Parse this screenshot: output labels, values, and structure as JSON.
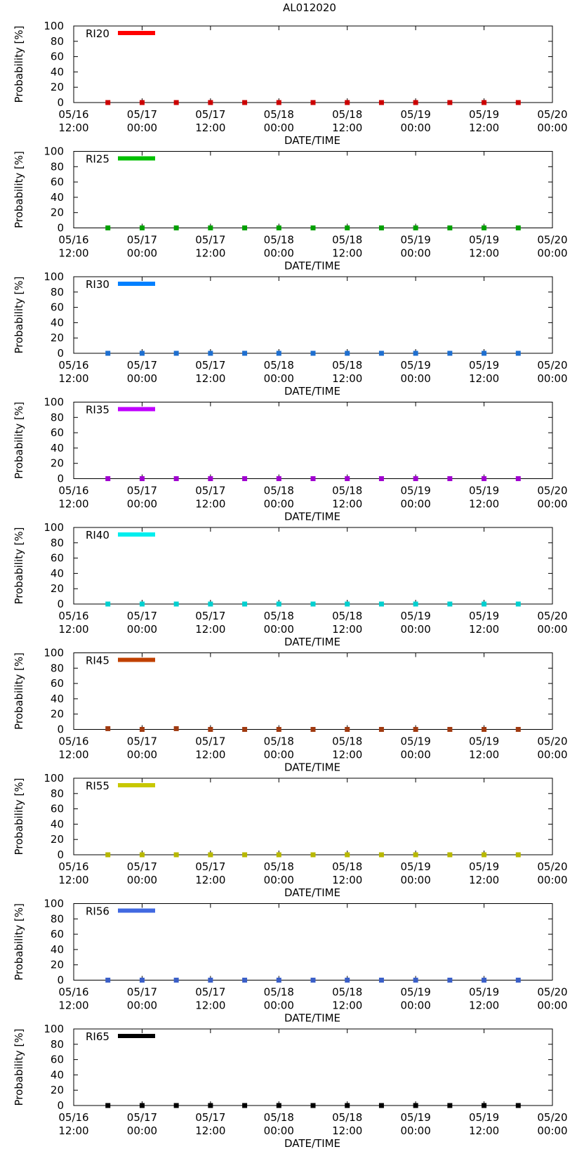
{
  "chart_data": {
    "type": "scatter",
    "title": "AL012020",
    "xlabel": "DATE/TIME",
    "ylabel": "Probability [%]",
    "xlim_hours": [
      0,
      84
    ],
    "ylim": [
      0,
      100
    ],
    "yticks": [
      0,
      20,
      40,
      60,
      80,
      100
    ],
    "xticks": [
      {
        "hour": 0,
        "date": "05/16",
        "time": "12:00"
      },
      {
        "hour": 12,
        "date": "05/17",
        "time": "00:00"
      },
      {
        "hour": 24,
        "date": "05/17",
        "time": "12:00"
      },
      {
        "hour": 36,
        "date": "05/18",
        "time": "00:00"
      },
      {
        "hour": 48,
        "date": "05/18",
        "time": "12:00"
      },
      {
        "hour": 60,
        "date": "05/19",
        "time": "00:00"
      },
      {
        "hour": 72,
        "date": "05/19",
        "time": "12:00"
      },
      {
        "hour": 84,
        "date": "05/20",
        "time": "00:00"
      }
    ],
    "x_hours": [
      6,
      12,
      18,
      24,
      30,
      36,
      42,
      48,
      54,
      60,
      66,
      72,
      78
    ],
    "series": [
      {
        "name": "RI20",
        "color": "#ff0000",
        "marker_color": "#cc0000",
        "values": [
          0,
          0,
          0,
          0,
          0,
          0,
          0,
          0,
          0,
          0,
          0,
          0,
          0
        ]
      },
      {
        "name": "RI25",
        "color": "#00c000",
        "marker_color": "#00a000",
        "values": [
          0,
          0,
          0,
          0,
          0,
          0,
          0,
          0,
          0,
          0,
          0,
          0,
          0
        ]
      },
      {
        "name": "RI30",
        "color": "#0080ff",
        "marker_color": "#1e6fd0",
        "values": [
          0,
          0,
          0,
          0,
          0,
          0,
          0,
          0,
          0,
          0,
          0,
          0,
          0
        ]
      },
      {
        "name": "RI35",
        "color": "#c000ff",
        "marker_color": "#a000d0",
        "values": [
          0,
          0,
          0,
          0,
          0,
          0,
          0,
          0,
          0,
          0,
          0,
          0,
          0
        ]
      },
      {
        "name": "RI40",
        "color": "#00eeee",
        "marker_color": "#00d0d0",
        "values": [
          0,
          0,
          0,
          0,
          0,
          0,
          0,
          0,
          0,
          0,
          0,
          0,
          0
        ]
      },
      {
        "name": "RI45",
        "color": "#c04000",
        "marker_color": "#a03a10",
        "values": [
          1,
          0,
          1,
          0,
          0,
          0,
          0,
          0,
          0,
          0,
          0,
          0,
          0
        ]
      },
      {
        "name": "RI55",
        "color": "#c8c800",
        "marker_color": "#b8b800",
        "values": [
          0,
          0,
          0,
          0,
          0,
          0,
          0,
          0,
          0,
          0,
          0,
          0,
          0
        ]
      },
      {
        "name": "RI56",
        "color": "#4169e1",
        "marker_color": "#3a5fc8",
        "values": [
          0,
          0,
          0,
          0,
          0,
          0,
          0,
          0,
          0,
          0,
          0,
          0,
          0
        ]
      },
      {
        "name": "RI65",
        "color": "#000000",
        "marker_color": "#000000",
        "values": [
          0,
          0,
          0,
          0,
          0,
          0,
          0,
          0,
          0,
          0,
          0,
          0,
          0
        ]
      }
    ]
  }
}
